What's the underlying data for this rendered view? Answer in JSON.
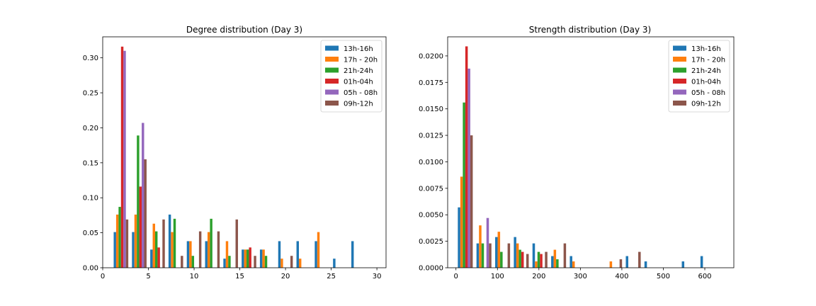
{
  "chart_data": [
    {
      "type": "bar",
      "title": "Degree distribution (Day 3)",
      "xlabel": "",
      "ylabel": "",
      "xlim": [
        0,
        31
      ],
      "ylim": [
        0,
        0.33
      ],
      "xticks": [
        0,
        5,
        10,
        15,
        20,
        25,
        30
      ],
      "xtick_labels": [
        "0",
        "5",
        "10",
        "15",
        "20",
        "25",
        "30"
      ],
      "yticks": [
        0,
        0.05,
        0.1,
        0.15,
        0.2,
        0.25,
        0.3
      ],
      "ytick_labels": [
        "0.00",
        "0.05",
        "0.10",
        "0.15",
        "0.20",
        "0.25",
        "0.30"
      ],
      "bin_x": [
        2,
        4,
        6,
        8,
        10,
        12,
        14,
        16,
        18,
        20,
        22,
        24,
        26,
        28
      ],
      "grid": false,
      "legend_position": "top-right",
      "series": [
        {
          "name": "13h-16h",
          "color": "#1f77b4",
          "values": [
            0.051,
            0.051,
            0.026,
            0.076,
            0.038,
            0.038,
            0.013,
            0.026,
            0.026,
            0.038,
            0.038,
            0.038,
            0.013,
            0.038
          ]
        },
        {
          "name": "17h - 20h",
          "color": "#ff7f0e",
          "values": [
            0.076,
            0.076,
            0.063,
            0.051,
            0.038,
            0.051,
            0.038,
            0.026,
            0.026,
            0.013,
            0.013,
            0.051,
            0,
            0
          ]
        },
        {
          "name": "21h-24h",
          "color": "#2ca02c",
          "values": [
            0.087,
            0.189,
            0.052,
            0.07,
            0.017,
            0.07,
            0.017,
            0.026,
            0.017,
            0,
            0,
            0,
            0,
            0
          ]
        },
        {
          "name": "01h-04h",
          "color": "#d62728",
          "values": [
            0.316,
            0.116,
            0.029,
            0,
            0,
            0,
            0,
            0.029,
            0,
            0,
            0,
            0,
            0,
            0
          ]
        },
        {
          "name": "05h - 08h",
          "color": "#9467bd",
          "values": [
            0.31,
            0.207,
            0,
            0,
            0,
            0,
            0,
            0,
            0,
            0,
            0,
            0,
            0,
            0
          ]
        },
        {
          "name": "09h-12h",
          "color": "#8c564b",
          "values": [
            0.069,
            0.155,
            0.069,
            0.017,
            0.052,
            0.052,
            0.069,
            0.017,
            0,
            0.017,
            0,
            0,
            0,
            0
          ]
        }
      ]
    },
    {
      "type": "bar",
      "title": "Strength distribution (Day 3)",
      "xlabel": "",
      "ylabel": "",
      "xlim": [
        -20,
        670
      ],
      "ylim": [
        0,
        0.0218
      ],
      "xticks": [
        0,
        100,
        200,
        300,
        400,
        500,
        600
      ],
      "xtick_labels": [
        "0",
        "100",
        "200",
        "300",
        "400",
        "500",
        "600"
      ],
      "yticks": [
        0,
        0.0025,
        0.005,
        0.0075,
        0.01,
        0.0125,
        0.015,
        0.0175,
        0.02
      ],
      "ytick_labels": [
        "0.0000",
        "0.0025",
        "0.0050",
        "0.0075",
        "0.0100",
        "0.0125",
        "0.0150",
        "0.0175",
        "0.0200"
      ],
      "bin_x": [
        22.5,
        67.5,
        112.5,
        157.5,
        202.5,
        247.5,
        292.5,
        337.5,
        382.5,
        427.5,
        472.5,
        517.5,
        562.5,
        607.5
      ],
      "grid": false,
      "legend_position": "top-right",
      "series": [
        {
          "name": "13h-16h",
          "color": "#1f77b4",
          "values": [
            0.0057,
            0.0023,
            0.0029,
            0.0029,
            0.0023,
            0.0011,
            0.0011,
            0,
            0,
            0.0011,
            0.0006,
            0,
            0.0006,
            0.0011
          ]
        },
        {
          "name": "17h - 20h",
          "color": "#ff7f0e",
          "values": [
            0.0086,
            0.004,
            0.0034,
            0.0023,
            0.0006,
            0.0017,
            0.0006,
            0,
            0.0006,
            0,
            0,
            0,
            0,
            0
          ]
        },
        {
          "name": "21h-24h",
          "color": "#2ca02c",
          "values": [
            0.0156,
            0.0023,
            0.0015,
            0.0017,
            0.0015,
            0.0008,
            0,
            0,
            0,
            0,
            0,
            0,
            0,
            0
          ]
        },
        {
          "name": "01h-04h",
          "color": "#d62728",
          "values": [
            0.0209,
            0,
            0,
            0.0015,
            0.0013,
            0,
            0,
            0,
            0,
            0,
            0,
            0,
            0,
            0
          ]
        },
        {
          "name": "05h - 08h",
          "color": "#9467bd",
          "values": [
            0.0188,
            0.0047,
            0,
            0,
            0,
            0,
            0,
            0,
            0,
            0,
            0,
            0,
            0,
            0
          ]
        },
        {
          "name": "09h-12h",
          "color": "#8c564b",
          "values": [
            0.0125,
            0.0023,
            0.0023,
            0.0013,
            0.0015,
            0.0023,
            0,
            0,
            0.0008,
            0.0015,
            0,
            0,
            0,
            0
          ]
        }
      ]
    }
  ]
}
